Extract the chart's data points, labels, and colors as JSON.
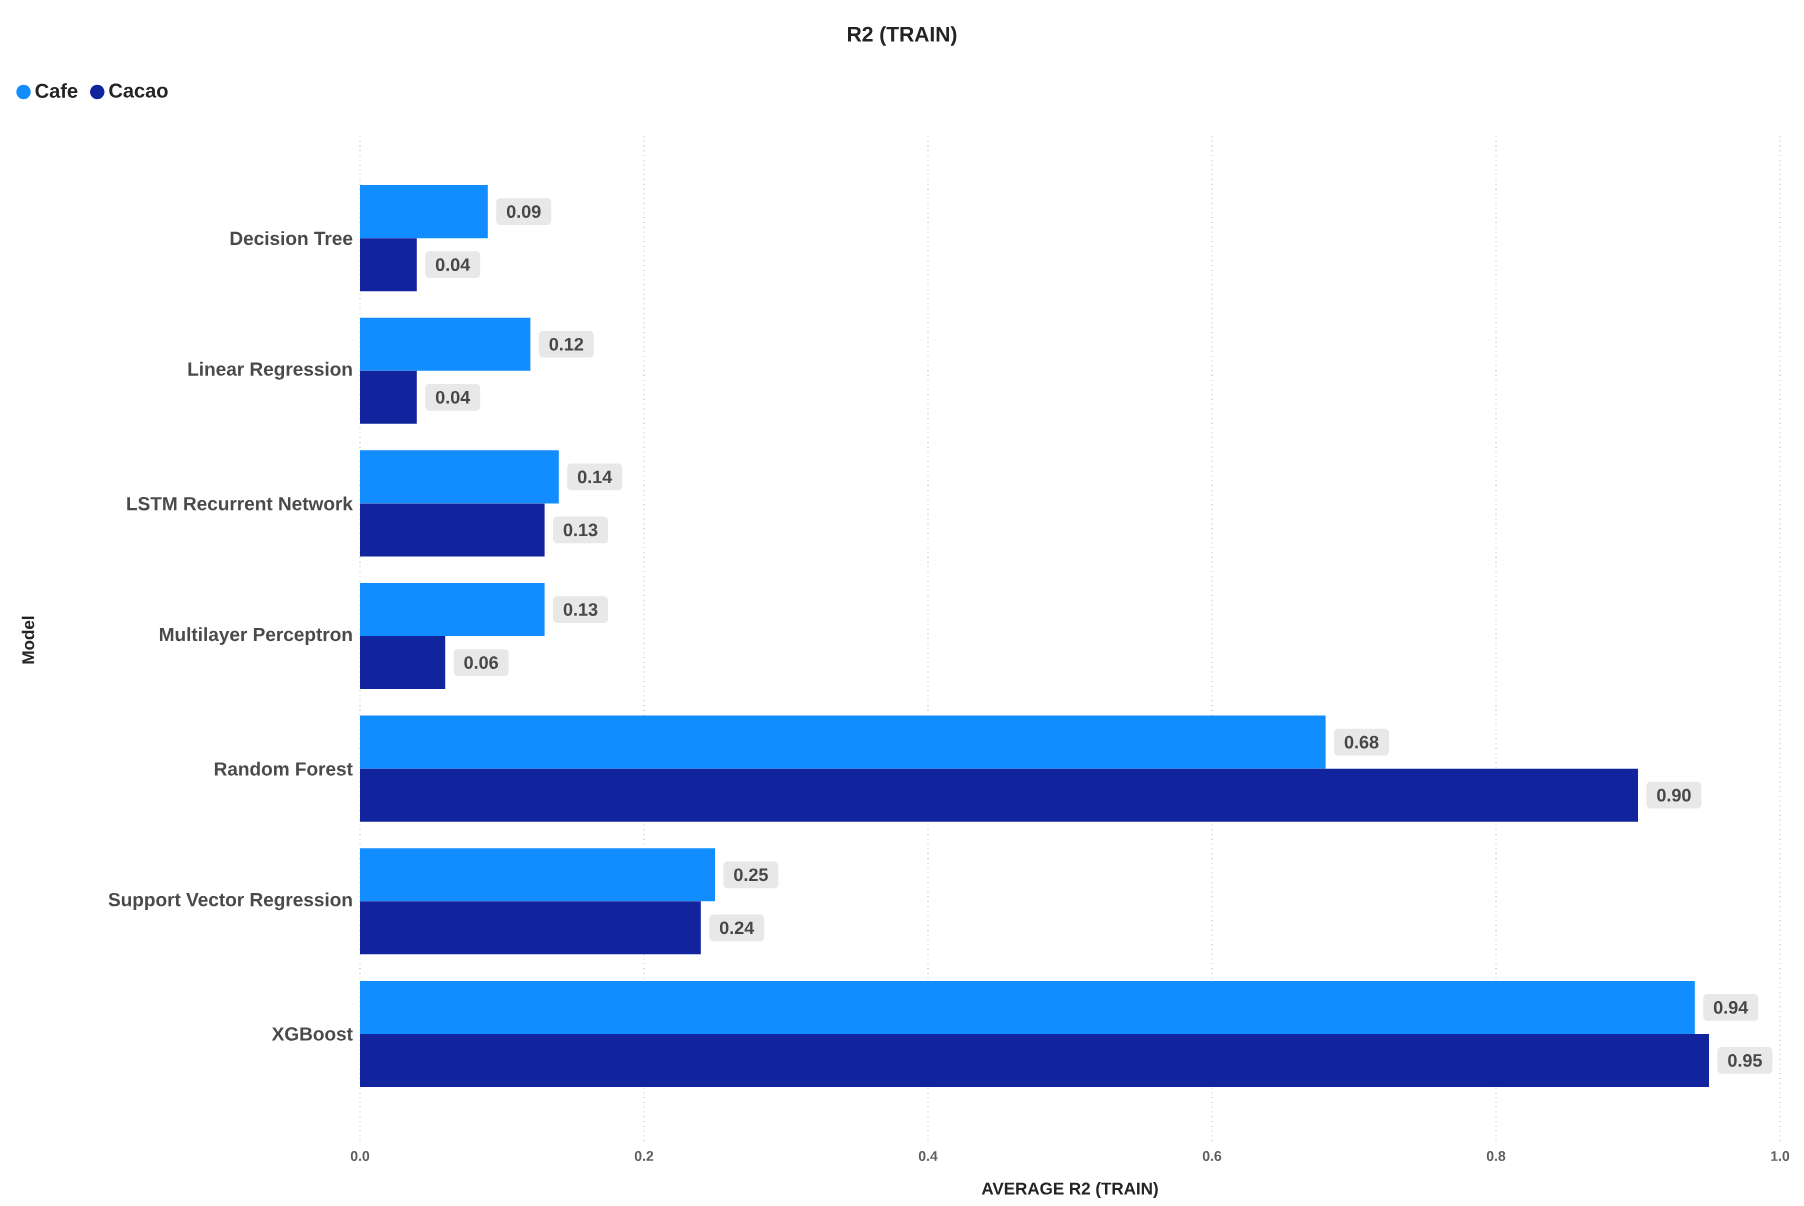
{
  "chart_data": {
    "type": "bar",
    "orientation": "horizontal",
    "title": "R2 (TRAIN)",
    "xlabel": "AVERAGE R2 (TRAIN)",
    "ylabel": "Model",
    "categories": [
      "Decision Tree",
      "Linear Regression",
      "LSTM Recurrent Network",
      "Multilayer Perceptron",
      "Random Forest",
      "Support Vector Regression",
      "XGBoost"
    ],
    "series": [
      {
        "name": "Cafe",
        "color": "#118dff",
        "values": [
          0.09,
          0.12,
          0.14,
          0.13,
          0.68,
          0.25,
          0.94
        ],
        "value_labels": [
          "0.09",
          "0.12",
          "0.14",
          "0.13",
          "0.68",
          "0.25",
          "0.94"
        ]
      },
      {
        "name": "Cacao",
        "color": "#12239e",
        "values": [
          0.04,
          0.04,
          0.13,
          0.06,
          0.9,
          0.24,
          0.95
        ],
        "value_labels": [
          "0.04",
          "0.04",
          "0.13",
          "0.06",
          "0.90",
          "0.24",
          "0.95"
        ]
      }
    ],
    "xlim": [
      0,
      1
    ],
    "xticks": [
      {
        "value": 0,
        "label": "0.0"
      },
      {
        "value": 0.2,
        "label": "0.2"
      },
      {
        "value": 0.4,
        "label": "0.4"
      },
      {
        "value": 0.6,
        "label": "0.6"
      },
      {
        "value": 0.8,
        "label": "0.8"
      },
      {
        "value": 1,
        "label": "1.0"
      }
    ],
    "grid": "x",
    "legend": "top left"
  }
}
